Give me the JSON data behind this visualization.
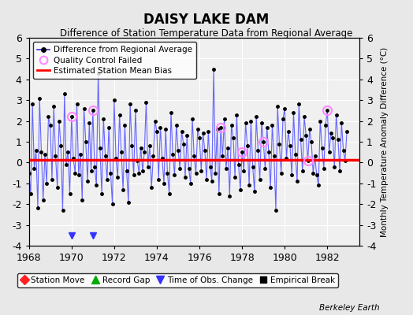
{
  "title": "DAISY LAKE DAM",
  "subtitle": "Difference of Station Temperature Data from Regional Average",
  "ylabel": "Monthly Temperature Anomaly Difference (°C)",
  "xlabel_note": "Berkeley Earth",
  "xlim": [
    1968,
    1983.5
  ],
  "ylim": [
    -4,
    6
  ],
  "yticks": [
    -4,
    -3,
    -2,
    -1,
    0,
    1,
    2,
    3,
    4,
    5,
    6
  ],
  "xticks": [
    1968,
    1970,
    1972,
    1974,
    1976,
    1978,
    1980,
    1982
  ],
  "mean_bias": 0.12,
  "background_color": "#e8e8e8",
  "plot_bg_color": "#f0f0f0",
  "line_color": "#6666ff",
  "marker_color": "#000000",
  "bias_color": "#ff0000",
  "qc_color": "#ff88ff",
  "time_series": [
    -0.5,
    -1.5,
    2.8,
    -0.3,
    0.6,
    -2.2,
    3.1,
    0.5,
    -1.8,
    0.4,
    -1.0,
    2.2,
    1.8,
    -0.8,
    2.7,
    0.3,
    -1.2,
    2.0,
    0.8,
    -2.3,
    3.3,
    -0.1,
    0.5,
    -1.5,
    2.2,
    0.2,
    -0.5,
    2.8,
    -0.6,
    0.4,
    -1.8,
    2.6,
    1.0,
    -0.9,
    1.9,
    -0.4,
    2.5,
    -0.2,
    -1.1,
    4.3,
    0.7,
    -1.5,
    2.1,
    0.3,
    -0.8,
    1.7,
    -0.5,
    -2.0,
    3.0,
    0.2,
    -0.7,
    2.3,
    0.5,
    -1.3,
    1.8,
    -0.4,
    -1.9,
    2.8,
    0.8,
    -0.6,
    2.5,
    0.1,
    -0.5,
    0.7,
    -0.4,
    0.5,
    2.9,
    -0.2,
    0.8,
    -1.2,
    0.3,
    2.0,
    1.5,
    -0.8,
    1.7,
    0.2,
    -1.0,
    1.6,
    -0.5,
    -1.5,
    2.4,
    0.4,
    -0.6,
    1.8,
    0.6,
    -0.3,
    1.5,
    0.9,
    -0.7,
    1.3,
    -0.3,
    -1.0,
    2.1,
    0.3,
    -0.5,
    1.6,
    1.2,
    -0.4,
    1.4,
    0.6,
    -0.8,
    1.5,
    -0.2,
    -0.9,
    4.5,
    -0.5,
    1.6,
    -1.5,
    1.7,
    0.3,
    2.1,
    -0.3,
    0.7,
    -1.6,
    1.8,
    1.2,
    -0.7,
    2.3,
    -0.1,
    -1.3,
    0.5,
    -0.4,
    1.9,
    0.8,
    -1.1,
    2.0,
    -0.2,
    -1.4,
    2.2,
    0.6,
    -0.8,
    1.9,
    1.0,
    -0.3,
    1.7,
    0.5,
    -1.2,
    1.8,
    0.3,
    -2.3,
    2.7,
    0.9,
    -0.5,
    2.1,
    2.6,
    0.2,
    1.5,
    0.8,
    -0.6,
    2.4,
    0.4,
    -0.9,
    2.8,
    1.1,
    -0.4,
    2.2,
    1.3,
    0.1,
    1.6,
    1.0,
    -0.5,
    0.3,
    -0.6,
    -1.1,
    2.0,
    0.7,
    -0.3,
    1.8,
    2.5,
    0.5,
    1.4,
    1.2,
    -0.2,
    2.3,
    1.1,
    -0.4,
    1.9,
    0.6,
    0.1,
    1.5
  ],
  "qc_failed_indices": [
    24,
    36,
    108,
    120,
    132,
    157,
    168
  ],
  "time_of_obs_indices": [
    24,
    36
  ],
  "start_year": 1968.0,
  "n_months": 180,
  "legend1_items": [
    {
      "label": "Difference from Regional Average",
      "color": "#3333cc",
      "marker": "o",
      "markersize": 4,
      "linestyle": "-"
    },
    {
      "label": "Quality Control Failed",
      "color": "#ff88ff",
      "marker": "o",
      "markersize": 6,
      "linestyle": "none"
    },
    {
      "label": "Estimated Station Mean Bias",
      "color": "#ff0000",
      "marker": "none",
      "linestyle": "-"
    }
  ],
  "legend2_items": [
    {
      "label": "Station Move",
      "color": "#ff2222",
      "marker": "D",
      "markersize": 6
    },
    {
      "label": "Record Gap",
      "color": "#00aa00",
      "marker": "^",
      "markersize": 7
    },
    {
      "label": "Time of Obs. Change",
      "color": "#3333ff",
      "marker": "v",
      "markersize": 7
    },
    {
      "label": "Empirical Break",
      "color": "#000000",
      "marker": "s",
      "markersize": 6
    }
  ]
}
